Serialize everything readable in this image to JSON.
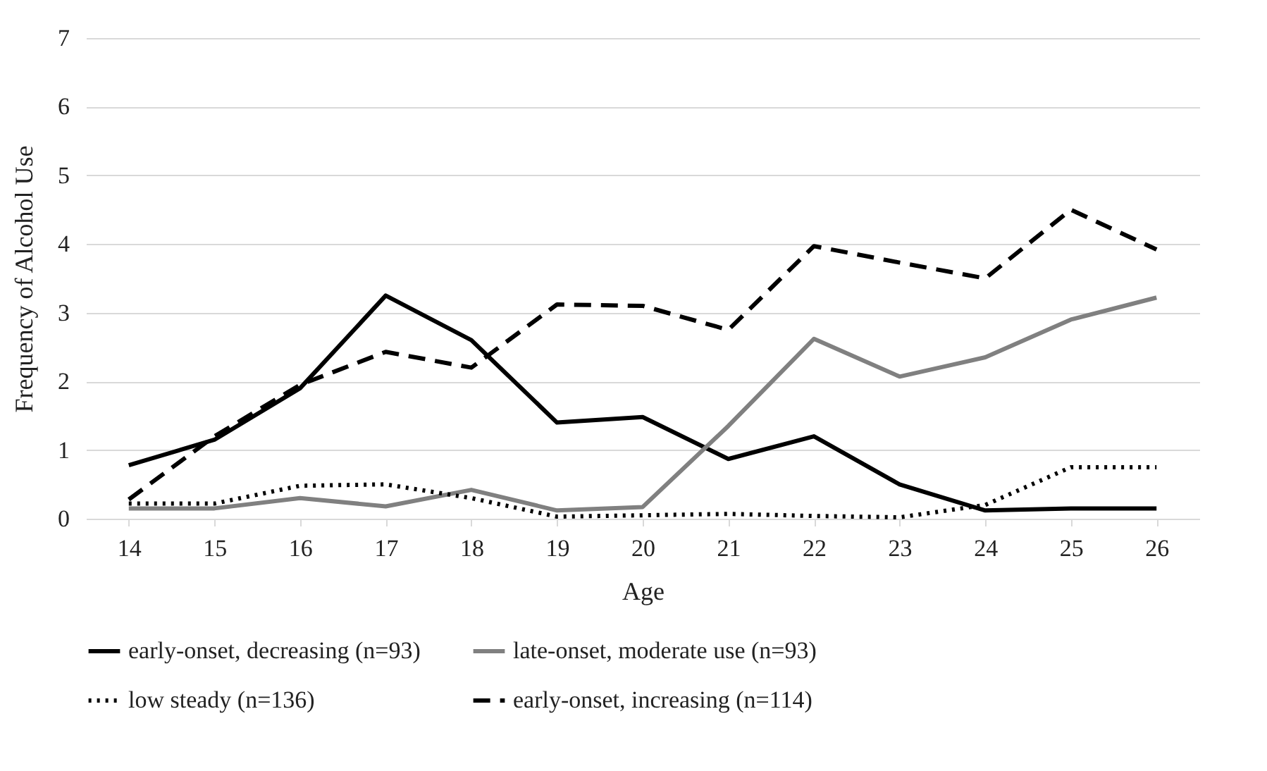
{
  "chart_data": {
    "type": "line",
    "xlabel": "Age",
    "ylabel": "Frequency of Alcohol Use",
    "categories": [
      "14",
      "15",
      "16",
      "17",
      "18",
      "19",
      "20",
      "21",
      "22",
      "23",
      "24",
      "25",
      "26"
    ],
    "series": [
      {
        "name": "early-onset, decreasing (n=93)",
        "color": "#000000",
        "line_style": "solid",
        "values": [
          0.78,
          1.15,
          1.9,
          3.25,
          2.6,
          1.4,
          1.48,
          0.87,
          1.2,
          0.5,
          0.12,
          0.15,
          0.15
        ]
      },
      {
        "name": "late-onset, moderate use (n=93)",
        "color": "#808080",
        "line_style": "solid",
        "values": [
          0.15,
          0.15,
          0.3,
          0.18,
          0.42,
          0.12,
          0.17,
          1.35,
          2.62,
          2.07,
          2.35,
          2.9,
          3.22
        ]
      },
      {
        "name": "low steady (n=136)",
        "color": "#000000",
        "line_style": "dotted",
        "values": [
          0.22,
          0.22,
          0.48,
          0.5,
          0.3,
          0.03,
          0.05,
          0.07,
          0.04,
          0.02,
          0.2,
          0.75,
          0.75
        ]
      },
      {
        "name": "early-onset, increasing (n=114)",
        "color": "#000000",
        "line_style": "dashed",
        "values": [
          0.28,
          1.2,
          1.95,
          2.43,
          2.2,
          3.12,
          3.1,
          2.75,
          3.97,
          3.73,
          3.5,
          4.5,
          3.92
        ]
      }
    ],
    "ylim": [
      0,
      7
    ],
    "yticks": [
      0,
      1,
      2,
      3,
      4,
      5,
      6,
      7
    ],
    "grid": "y",
    "legend": "bottom"
  }
}
